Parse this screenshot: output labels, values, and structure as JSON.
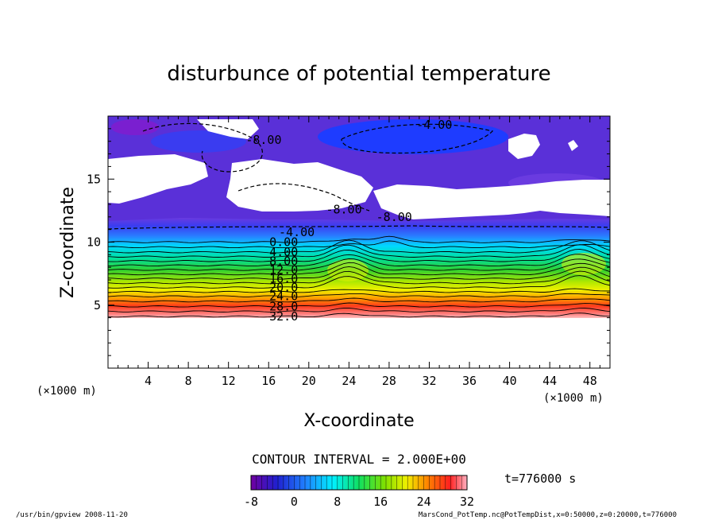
{
  "chart_data": {
    "type": "contour",
    "title": "disturbunce of potential temperature",
    "xlabel": "X-coordinate",
    "ylabel": "Z-coordinate",
    "x_unit_left": "(×1000 m)",
    "x_unit_right": "(×1000 m)",
    "xlim": [
      0,
      50
    ],
    "ylim": [
      0,
      20
    ],
    "x_ticks": [
      4,
      8,
      12,
      16,
      20,
      24,
      28,
      32,
      36,
      40,
      44,
      48
    ],
    "y_ticks": [
      5,
      10,
      15
    ],
    "contour_interval_text": "CONTOUR INTERVAL = 2.000E+00",
    "time_text": "t=776000 s",
    "contour_labels": [
      {
        "text": "-8.00",
        "x": 15.5,
        "y": 18.1,
        "color": "black"
      },
      {
        "text": "-4.00",
        "x": 32.5,
        "y": 19.3,
        "color": "black"
      },
      {
        "text": "-8.00",
        "x": 23.5,
        "y": 12.6,
        "color": "black"
      },
      {
        "text": "-8.00",
        "x": 28.5,
        "y": 12.0,
        "color": "black"
      },
      {
        "text": "-4.00",
        "x": 18.8,
        "y": 10.8,
        "color": "black"
      },
      {
        "text": "0.00",
        "x": 17.5,
        "y": 10.0,
        "color": "black"
      },
      {
        "text": "4.00",
        "x": 17.5,
        "y": 9.2,
        "color": "black"
      },
      {
        "text": "8.00",
        "x": 17.5,
        "y": 8.5,
        "color": "black"
      },
      {
        "text": "12.0",
        "x": 17.5,
        "y": 7.8,
        "color": "black"
      },
      {
        "text": "16.0",
        "x": 17.5,
        "y": 7.1,
        "color": "black"
      },
      {
        "text": "20.0",
        "x": 17.5,
        "y": 6.4,
        "color": "black"
      },
      {
        "text": "24.0",
        "x": 17.5,
        "y": 5.7,
        "color": "black"
      },
      {
        "text": "28.0",
        "x": 17.5,
        "y": 4.9,
        "color": "black"
      },
      {
        "text": "32.0",
        "x": 17.5,
        "y": 4.1,
        "color": "black"
      }
    ],
    "colorbar": {
      "min": -8,
      "max": 32,
      "tick_labels": [
        "-8",
        "0",
        "8",
        "16",
        "24",
        "32"
      ],
      "tick_values": [
        -8,
        0,
        8,
        16,
        24,
        32
      ]
    },
    "colors": {
      "purple": "#7a1fd0",
      "blue": "#1e3cff",
      "cyan": "#00e6ff",
      "green": "#2fd02a",
      "yellow": "#e8f000",
      "orange": "#ff8a00",
      "red": "#ee1f1f",
      "pink": "#ffb0b0"
    }
  },
  "footer": {
    "left": "/usr/bin/gpview   2008-11-20",
    "right": "MarsCond_PotTemp.nc@PotTempDist,x=0:50000,z=0:20000,t=776000"
  }
}
